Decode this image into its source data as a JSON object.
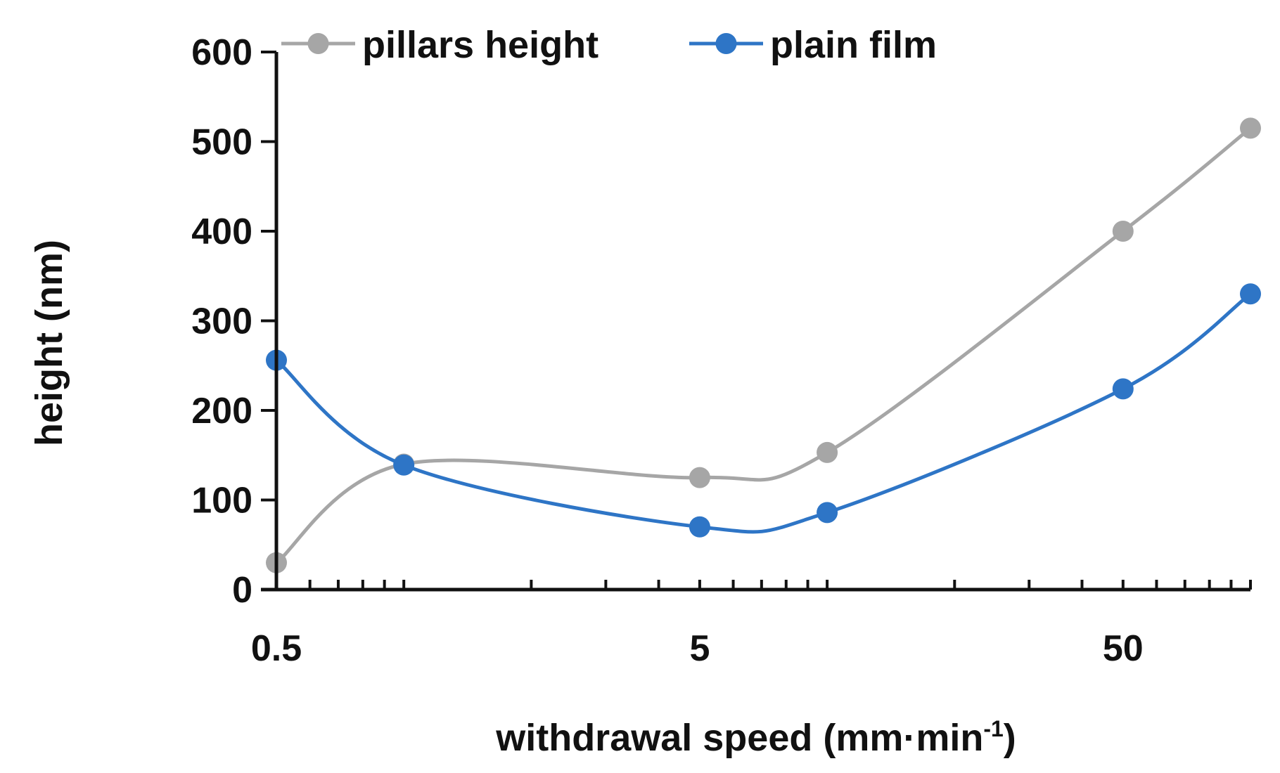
{
  "chart_data": {
    "type": "line",
    "title": "",
    "xlabel": "withdrawal speed (mm·min",
    "xlabel_superscript": "-1",
    "xlabel_suffix": ")",
    "ylabel": "height (nm)",
    "x_scale": "log",
    "xlim": [
      0.5,
      100
    ],
    "ylim": [
      0,
      600
    ],
    "x_tick_labels": [
      "0.5",
      "5",
      "50"
    ],
    "y_tick_labels": [
      "0",
      "100",
      "200",
      "300",
      "400",
      "500",
      "600"
    ],
    "grid": false,
    "legend_position": "top",
    "x": [
      0.5,
      1,
      5,
      10,
      50,
      100
    ],
    "series": [
      {
        "name": "pillars height",
        "color": "#a6a6a6",
        "values": [
          30,
          140,
          125,
          153,
          400,
          515
        ]
      },
      {
        "name": "plain film",
        "color": "#2e75c6",
        "values": [
          256,
          139,
          70,
          86,
          224,
          330
        ]
      }
    ]
  }
}
